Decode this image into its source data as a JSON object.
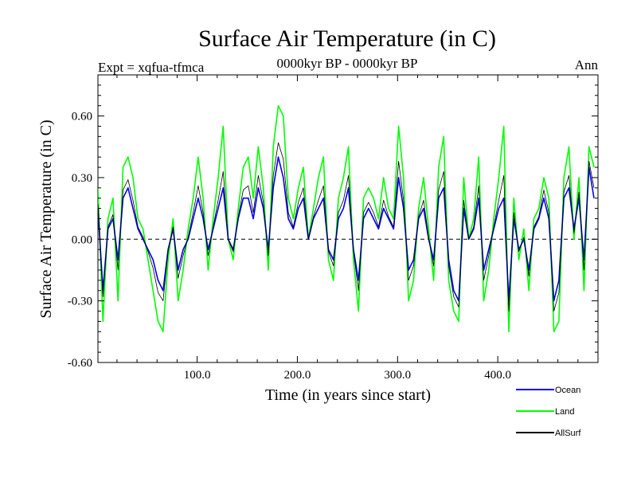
{
  "chart_data": {
    "type": "line",
    "title": "Surface Air Temperature (in C)",
    "subtitle": "0000kyr BP - 0000kyr BP",
    "left_label": "Expt = xqfua-tfmca",
    "right_label": "Ann",
    "xlabel": "Time (in years since start)",
    "ylabel": "Surface Air Temperature (in C)",
    "xlim": [
      1,
      500
    ],
    "ylim": [
      -0.6,
      0.8
    ],
    "x_ticks": [
      100,
      200,
      300,
      400
    ],
    "x_tick_labels": [
      "100.0",
      "200.0",
      "300.0",
      "400.0"
    ],
    "y_ticks": [
      -0.6,
      -0.3,
      0.0,
      0.3,
      0.6
    ],
    "y_tick_labels": [
      "-0.60",
      "-0.30",
      "0.00",
      "0.30",
      "0.60"
    ],
    "zero_line": 0.0,
    "legend_position": "bottom-right",
    "series_colors": {
      "Ocean": "#0000ff",
      "Land": "#00ff00",
      "AllSurf": "#000000"
    },
    "series": [
      {
        "name": "Land",
        "x_start": 1,
        "x_step": 5,
        "values": [
          0.25,
          -0.4,
          0.1,
          0.2,
          -0.3,
          0.35,
          0.4,
          0.3,
          0.1,
          0.05,
          -0.1,
          -0.25,
          -0.4,
          -0.45,
          -0.1,
          0.1,
          -0.3,
          -0.15,
          0.05,
          0.2,
          0.4,
          0.2,
          -0.15,
          0.1,
          0.3,
          0.55,
          0.0,
          -0.1,
          0.15,
          0.35,
          0.4,
          0.2,
          0.45,
          0.25,
          -0.15,
          0.45,
          0.65,
          0.6,
          0.2,
          0.1,
          0.25,
          0.35,
          0.0,
          0.15,
          0.3,
          0.4,
          -0.1,
          -0.2,
          0.2,
          0.3,
          0.45,
          -0.1,
          -0.35,
          0.2,
          0.25,
          0.2,
          0.1,
          0.3,
          0.15,
          0.1,
          0.55,
          0.3,
          -0.3,
          -0.2,
          0.15,
          0.3,
          0.05,
          -0.2,
          0.35,
          0.5,
          -0.2,
          -0.35,
          -0.4,
          0.3,
          0.0,
          0.1,
          0.4,
          -0.3,
          -0.15,
          0.1,
          0.3,
          0.55,
          -0.45,
          0.2,
          -0.1,
          0.05,
          -0.25,
          0.1,
          0.15,
          0.3,
          0.2,
          -0.45,
          -0.4,
          0.3,
          0.45,
          0.0,
          0.3,
          -0.25,
          0.45,
          0.35
        ]
      },
      {
        "name": "Ocean",
        "x_start": 1,
        "x_step": 5,
        "values": [
          0.15,
          -0.25,
          0.05,
          0.1,
          -0.1,
          0.2,
          0.25,
          0.15,
          0.05,
          0.0,
          -0.05,
          -0.1,
          -0.2,
          -0.25,
          -0.05,
          0.05,
          -0.15,
          -0.05,
          0.0,
          0.1,
          0.2,
          0.1,
          -0.05,
          0.05,
          0.15,
          0.25,
          0.0,
          -0.05,
          0.1,
          0.2,
          0.2,
          0.1,
          0.25,
          0.15,
          -0.05,
          0.25,
          0.4,
          0.3,
          0.1,
          0.05,
          0.15,
          0.2,
          0.0,
          0.1,
          0.15,
          0.2,
          -0.05,
          -0.1,
          0.1,
          0.15,
          0.25,
          -0.05,
          -0.2,
          0.1,
          0.15,
          0.1,
          0.05,
          0.15,
          0.1,
          0.05,
          0.3,
          0.15,
          -0.15,
          -0.1,
          0.1,
          0.15,
          0.0,
          -0.1,
          0.2,
          0.25,
          -0.1,
          -0.25,
          -0.3,
          0.15,
          0.0,
          0.05,
          0.2,
          -0.15,
          -0.05,
          0.05,
          0.15,
          0.2,
          -0.3,
          0.1,
          -0.05,
          0.0,
          -0.15,
          0.05,
          0.1,
          0.2,
          0.1,
          -0.3,
          -0.2,
          0.2,
          0.25,
          0.05,
          0.2,
          -0.1,
          0.35,
          0.2
        ]
      },
      {
        "name": "AllSurf",
        "x_start": 1,
        "x_step": 5,
        "values": [
          0.17,
          -0.28,
          0.06,
          0.12,
          -0.15,
          0.24,
          0.29,
          0.19,
          0.06,
          0.01,
          -0.06,
          -0.14,
          -0.26,
          -0.3,
          -0.06,
          0.06,
          -0.19,
          -0.08,
          0.01,
          0.13,
          0.26,
          0.13,
          -0.08,
          0.06,
          0.19,
          0.33,
          0.0,
          -0.06,
          0.11,
          0.24,
          0.26,
          0.13,
          0.31,
          0.18,
          -0.08,
          0.31,
          0.47,
          0.39,
          0.13,
          0.06,
          0.18,
          0.25,
          0.0,
          0.11,
          0.19,
          0.26,
          -0.06,
          -0.13,
          0.13,
          0.19,
          0.31,
          -0.06,
          -0.25,
          0.13,
          0.18,
          0.13,
          0.06,
          0.19,
          0.11,
          0.06,
          0.38,
          0.19,
          -0.2,
          -0.13,
          0.11,
          0.19,
          0.01,
          -0.13,
          0.24,
          0.33,
          -0.13,
          -0.28,
          -0.33,
          0.19,
          0.0,
          0.06,
          0.26,
          -0.2,
          -0.08,
          0.06,
          0.19,
          0.31,
          -0.35,
          0.13,
          -0.06,
          0.01,
          -0.18,
          0.06,
          0.11,
          0.24,
          0.13,
          -0.35,
          -0.26,
          0.23,
          0.31,
          0.03,
          0.23,
          -0.15,
          0.38,
          0.25
        ]
      }
    ]
  }
}
